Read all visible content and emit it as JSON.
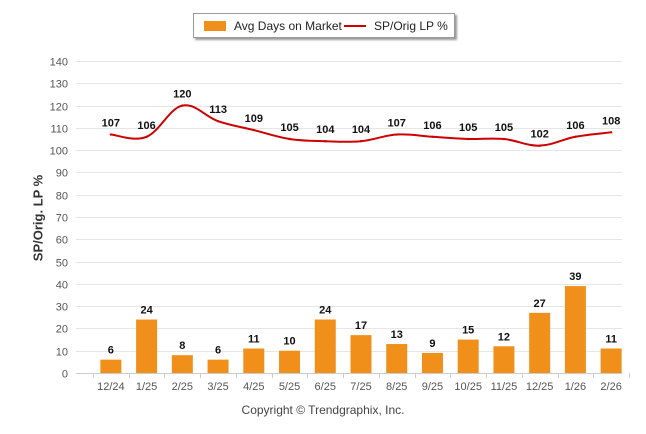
{
  "chart_data": {
    "type": "bar+line",
    "title": "",
    "xlabel": "",
    "ylabel": "SP/Orig. LP %",
    "ylim": [
      0,
      140
    ],
    "yticks": [
      0,
      10,
      20,
      30,
      40,
      50,
      60,
      70,
      80,
      90,
      100,
      110,
      120,
      130,
      140
    ],
    "grid": true,
    "legend_position": "top-center",
    "categories": [
      "12/24",
      "1/25",
      "2/25",
      "3/25",
      "4/25",
      "5/25",
      "6/25",
      "7/25",
      "8/25",
      "9/25",
      "10/25",
      "11/25",
      "12/25",
      "1/26",
      "2/26"
    ],
    "series": [
      {
        "name": "Avg Days on Market",
        "type": "bar",
        "color": "#f0901a",
        "values": [
          6,
          24,
          8,
          6,
          11,
          10,
          24,
          17,
          13,
          9,
          15,
          12,
          27,
          39,
          11
        ]
      },
      {
        "name": "SP/Orig LP %",
        "type": "line",
        "color": "#cc0000",
        "values": [
          107,
          106,
          120,
          113,
          109,
          105,
          104,
          104,
          107,
          106,
          105,
          105,
          102,
          106,
          108
        ]
      }
    ]
  },
  "legend": {
    "bar_label": "Avg Days on Market",
    "line_label": "SP/Orig LP %"
  },
  "footer": {
    "copyright": "Copyright © Trendgraphix, Inc."
  }
}
